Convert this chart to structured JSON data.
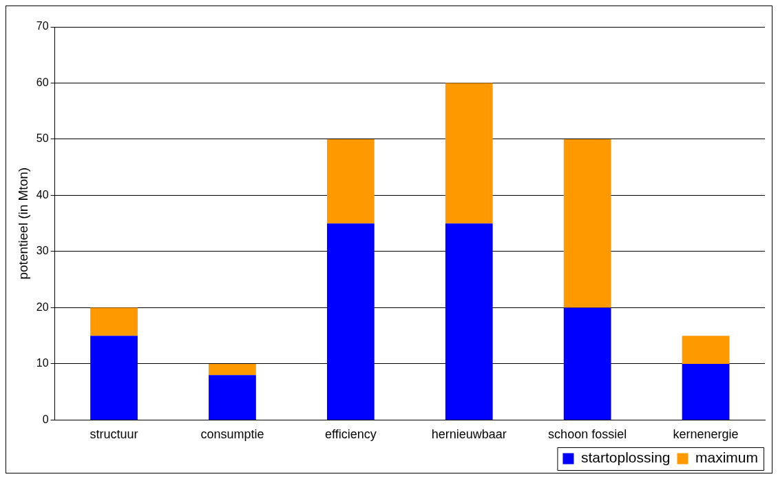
{
  "chart_data": {
    "type": "bar",
    "ylabel": "potentieel (in Mton)",
    "categories": [
      "structuur",
      "consumptie",
      "efficiency",
      "hernieuwbaar",
      "schoon fossiel",
      "kernenergie"
    ],
    "series": [
      {
        "name": "startoplossing",
        "color": "#0000ff",
        "values": [
          15,
          8,
          35,
          35,
          20,
          10
        ]
      },
      {
        "name": "maximum",
        "color": "#ff9900",
        "values": [
          5,
          2,
          15,
          25,
          30,
          5
        ]
      }
    ],
    "stacked": true,
    "ylim": [
      0,
      70
    ],
    "yticks": [
      0,
      10,
      20,
      30,
      40,
      50,
      60,
      70
    ],
    "grid": "y",
    "legend": "bottom right"
  }
}
